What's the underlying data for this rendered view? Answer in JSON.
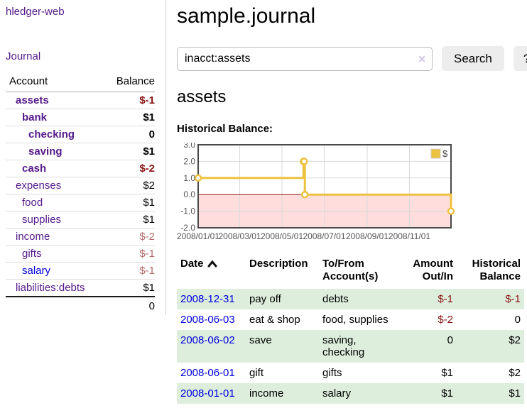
{
  "app": {
    "brand": "hledger-web",
    "nav": {
      "journal": "Journal"
    }
  },
  "sidebar": {
    "header": {
      "account": "Account",
      "balance": "Balance"
    },
    "accounts": [
      {
        "name": "assets",
        "balance": "$-1",
        "level": 1,
        "bold": true,
        "neg": "strong",
        "link": "purple"
      },
      {
        "name": "bank",
        "balance": "$1",
        "level": 2,
        "bold": true,
        "neg": "none",
        "link": "purple"
      },
      {
        "name": "checking",
        "balance": "0",
        "level": 3,
        "bold": true,
        "neg": "none",
        "link": "purple"
      },
      {
        "name": "saving",
        "balance": "$1",
        "level": 3,
        "bold": true,
        "neg": "none",
        "link": "purple"
      },
      {
        "name": "cash",
        "balance": "$-2",
        "level": 2,
        "bold": true,
        "neg": "strong",
        "link": "purple"
      },
      {
        "name": "expenses",
        "balance": "$2",
        "level": 1,
        "bold": false,
        "neg": "none",
        "link": "purple"
      },
      {
        "name": "food",
        "balance": "$1",
        "level": 2,
        "bold": false,
        "neg": "none",
        "link": "purple"
      },
      {
        "name": "supplies",
        "balance": "$1",
        "level": 2,
        "bold": false,
        "neg": "none",
        "link": "purple"
      },
      {
        "name": "income",
        "balance": "$-2",
        "level": 1,
        "bold": false,
        "neg": "light",
        "link": "purple"
      },
      {
        "name": "gifts",
        "balance": "$-1",
        "level": 2,
        "bold": false,
        "neg": "light",
        "link": "purple"
      },
      {
        "name": "salary",
        "balance": "$-1",
        "level": 2,
        "bold": false,
        "neg": "light",
        "link": "blue"
      },
      {
        "name": "liabilities:debts",
        "balance": "$1",
        "level": 1,
        "bold": false,
        "neg": "none",
        "link": "purple"
      }
    ],
    "total": "0"
  },
  "header": {
    "title": "sample.journal"
  },
  "search": {
    "value": "inacct:assets",
    "clear_icon": "✕",
    "button_label": "Search",
    "help_label": "?"
  },
  "account_page": {
    "title": "assets",
    "chart_heading": "Historical Balance:"
  },
  "chart_data": {
    "type": "line",
    "style": "step",
    "title": "Historical Balance",
    "series": [
      {
        "name": "$",
        "color": "#edc240",
        "points": [
          [
            "2008-01-01",
            1
          ],
          [
            "2008-06-01",
            2
          ],
          [
            "2008-06-02",
            2
          ],
          [
            "2008-06-03",
            0
          ],
          [
            "2008-12-31",
            -1
          ]
        ]
      }
    ],
    "x_range": [
      "2008-01-01",
      "2008-12-31"
    ],
    "ylim": [
      -2,
      3
    ],
    "ytick_values": [
      3,
      2,
      1,
      0,
      -1,
      -2
    ],
    "ytick_labels": [
      "3.0",
      "2.0",
      "1.0",
      "0.0",
      "-1.0",
      "-2.0"
    ],
    "xticks": [
      {
        "label": "2008/01/01",
        "date": "2008-01-01"
      },
      {
        "label": "2008/03/01",
        "date": "2008-03-01"
      },
      {
        "label": "2008/05/01",
        "date": "2008-05-01"
      },
      {
        "label": "2008/07/01",
        "date": "2008-07-01"
      },
      {
        "label": "2008/09/01",
        "date": "2008-09-01"
      },
      {
        "label": "2008/11/01",
        "date": "2008-11-01"
      }
    ],
    "legend": {
      "label": "$",
      "position": "top-right"
    },
    "grid": true,
    "negative_region_color": "#ffdddd",
    "zero_line_color": "#8b1414",
    "axis_color": "#545454",
    "border_color": "#4a4a4a"
  },
  "register": {
    "columns": [
      {
        "l1": "Date",
        "l2": ""
      },
      {
        "l1": "Description",
        "l2": ""
      },
      {
        "l1": "To/From",
        "l2": "Account(s)"
      },
      {
        "l1": "Amount",
        "l2": "Out/In"
      },
      {
        "l1": "Historical",
        "l2": "Balance"
      }
    ],
    "sort": {
      "column": "Date",
      "direction": "ascending"
    },
    "rows": [
      {
        "date": "2008-12-31",
        "description": "pay off",
        "accounts": "debts",
        "amount": "$-1",
        "amount_neg": true,
        "balance": "$-1",
        "balance_neg": true
      },
      {
        "date": "2008-06-03",
        "description": "eat & shop",
        "accounts": "food, supplies",
        "amount": "$-2",
        "amount_neg": true,
        "balance": "0",
        "balance_neg": false
      },
      {
        "date": "2008-06-02",
        "description": "save",
        "accounts": "saving,\nchecking",
        "amount": "0",
        "amount_neg": false,
        "balance": "$2",
        "balance_neg": false
      },
      {
        "date": "2008-06-01",
        "description": "gift",
        "accounts": "gifts",
        "amount": "$1",
        "amount_neg": false,
        "balance": "$2",
        "balance_neg": false
      },
      {
        "date": "2008-01-01",
        "description": "income",
        "accounts": "salary",
        "amount": "$1",
        "amount_neg": false,
        "balance": "$1",
        "balance_neg": false
      }
    ]
  },
  "colors": {
    "link_purple": "#551a8b",
    "link_blue": "#0000dd",
    "negative_strong": "#8b1414",
    "negative_light": "#b36a6a",
    "row_stripe_green": "#ddeedd",
    "chart_line": "#edc240",
    "chart_negative_region": "#ffdddd"
  }
}
